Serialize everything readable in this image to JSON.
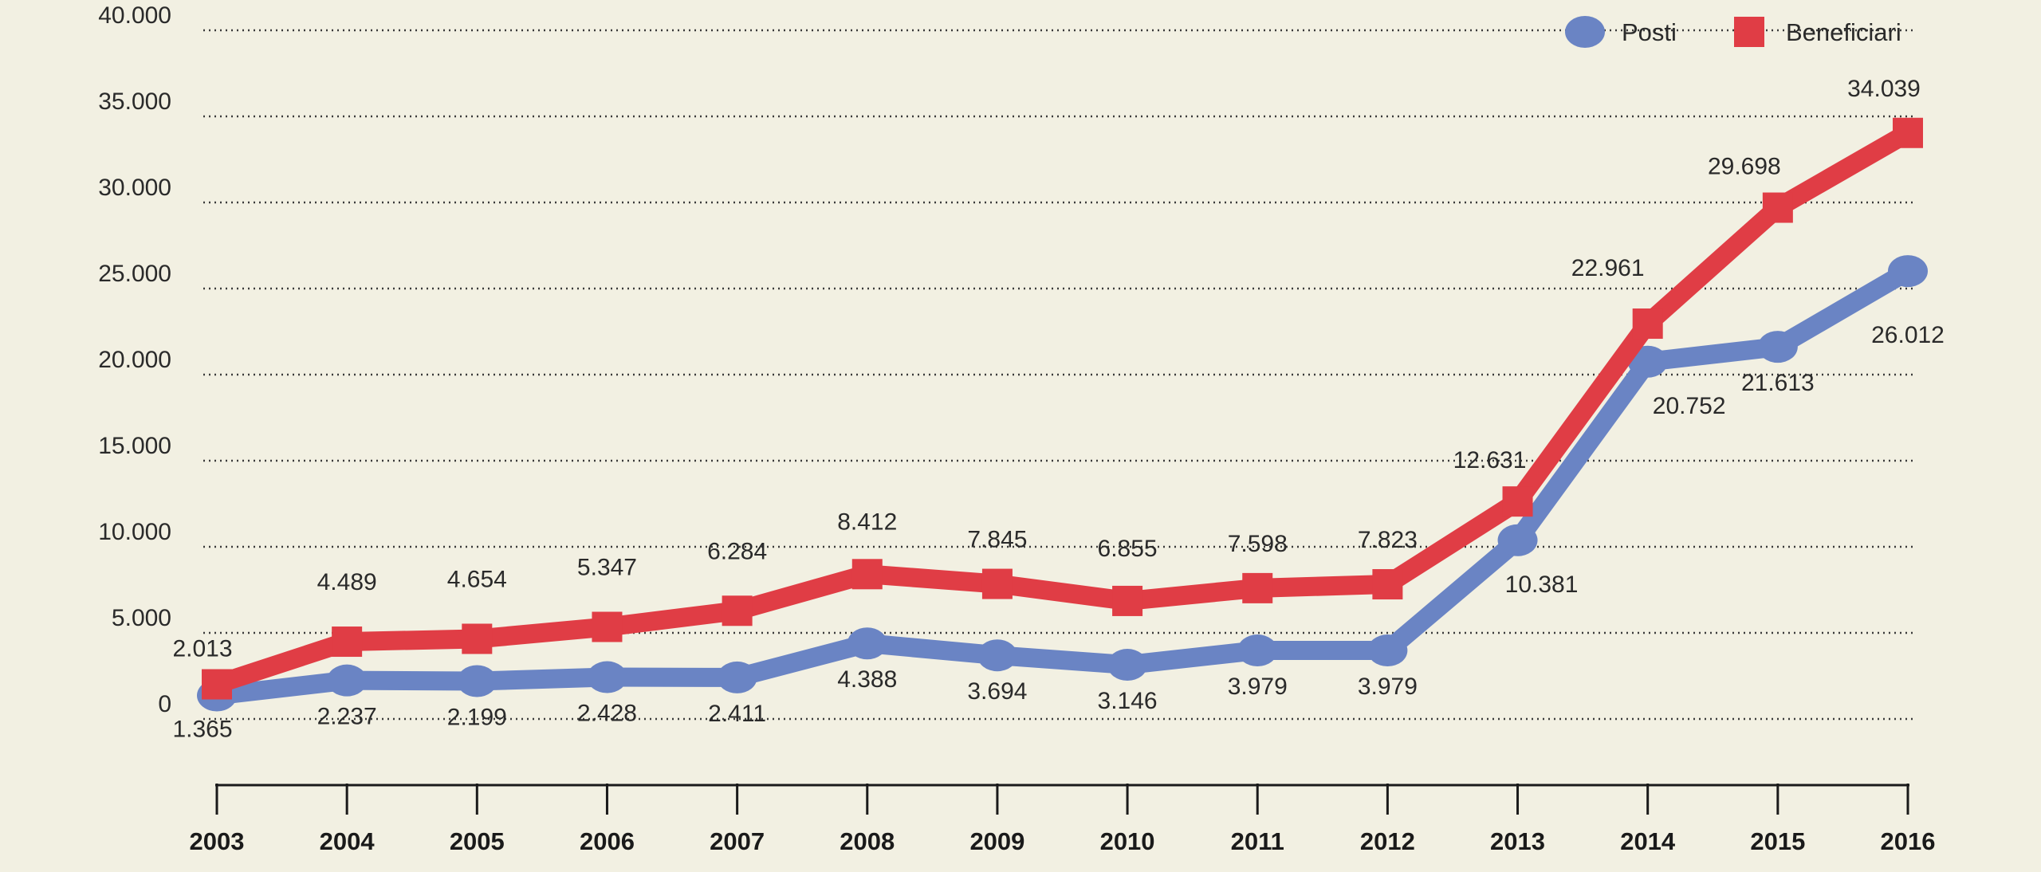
{
  "chart_data": {
    "type": "line",
    "categories": [
      "2003",
      "2004",
      "2005",
      "2006",
      "2007",
      "2008",
      "2009",
      "2010",
      "2011",
      "2012",
      "2013",
      "2014",
      "2015",
      "2016"
    ],
    "series": [
      {
        "name": "Posti",
        "color": "#6a84c4",
        "marker": "circle",
        "values": [
          1365,
          2237,
          2199,
          2428,
          2411,
          4388,
          3694,
          3146,
          3979,
          3979,
          10381,
          20752,
          21613,
          26012
        ],
        "labels": [
          "1.365",
          "2.237",
          "2.199",
          "2.428",
          "2.411",
          "4.388",
          "3.694",
          "3.146",
          "3.979",
          "3.979",
          "10.381",
          "20.752",
          "21.613",
          "26.012"
        ]
      },
      {
        "name": "Beneficiari",
        "color": "#e03d45",
        "marker": "square",
        "values": [
          2013,
          4489,
          4654,
          5347,
          6284,
          8412,
          7845,
          6855,
          7598,
          7823,
          12631,
          22961,
          29698,
          34039
        ],
        "labels": [
          "2.013",
          "4.489",
          "4.654",
          "5.347",
          "6.284",
          "8.412",
          "7.845",
          "6.855",
          "7.598",
          "7.823",
          "12.631",
          "22.961",
          "29.698",
          "34.039"
        ]
      }
    ],
    "yticks": [
      {
        "value": 0,
        "label": "0"
      },
      {
        "value": 5000,
        "label": "5.000"
      },
      {
        "value": 10000,
        "label": "10.000"
      },
      {
        "value": 15000,
        "label": "15.000"
      },
      {
        "value": 20000,
        "label": "20.000"
      },
      {
        "value": 25000,
        "label": "25.000"
      },
      {
        "value": 30000,
        "label": "30.000"
      },
      {
        "value": 35000,
        "label": "35.000"
      },
      {
        "value": 40000,
        "label": "40.000"
      }
    ],
    "ylim": [
      0,
      40000
    ],
    "grid": true,
    "grid_style": "dotted",
    "legend_placement": "top-right",
    "title": "",
    "xlabel": "",
    "ylabel": ""
  }
}
